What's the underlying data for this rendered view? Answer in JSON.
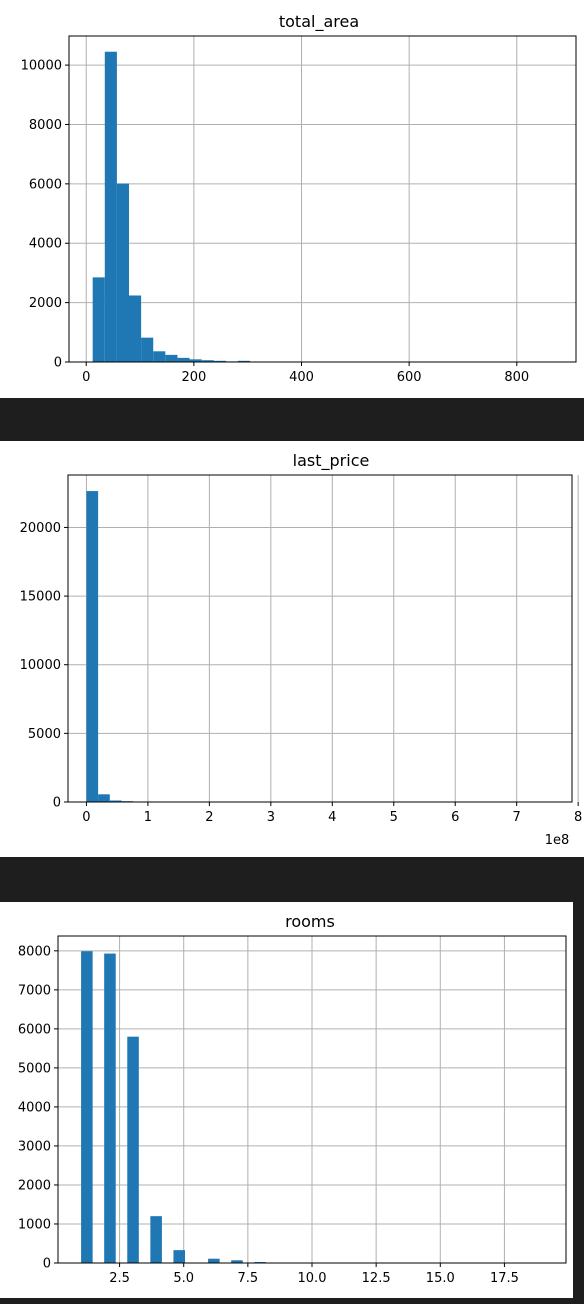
{
  "chart_data": [
    {
      "type": "bar",
      "title": "total_area",
      "xlim": [
        -32,
        910
      ],
      "ylim": [
        0,
        10980
      ],
      "grid": true,
      "bin_width": 22.5,
      "bins": [
        {
          "x0": 12.0,
          "value": 2850
        },
        {
          "x0": 34.5,
          "value": 10450
        },
        {
          "x0": 57.0,
          "value": 6010
        },
        {
          "x0": 79.5,
          "value": 2240
        },
        {
          "x0": 102.0,
          "value": 820
        },
        {
          "x0": 124.5,
          "value": 360
        },
        {
          "x0": 147.0,
          "value": 240
        },
        {
          "x0": 169.5,
          "value": 140
        },
        {
          "x0": 192.0,
          "value": 90
        },
        {
          "x0": 214.5,
          "value": 60
        },
        {
          "x0": 237.0,
          "value": 40
        },
        {
          "x0": 259.5,
          "value": 20
        },
        {
          "x0": 282.0,
          "value": 40
        },
        {
          "x0": 304.5,
          "value": 10
        },
        {
          "x0": 327.0,
          "value": 8
        },
        {
          "x0": 349.5,
          "value": 5
        },
        {
          "x0": 372.0,
          "value": 4
        }
      ],
      "xticks": [
        {
          "value": 0,
          "label": "0"
        },
        {
          "value": 200,
          "label": "200"
        },
        {
          "value": 400,
          "label": "400"
        },
        {
          "value": 600,
          "label": "600"
        },
        {
          "value": 800,
          "label": "800"
        }
      ],
      "yticks": [
        {
          "value": 0,
          "label": "0"
        },
        {
          "value": 2000,
          "label": "2000"
        },
        {
          "value": 4000,
          "label": "4000"
        },
        {
          "value": 6000,
          "label": "6000"
        },
        {
          "value": 8000,
          "label": "8000"
        },
        {
          "value": 10000,
          "label": "10000"
        }
      ],
      "offset_label": ""
    },
    {
      "type": "bar",
      "title": "last_price",
      "xlim": [
        -0.3,
        7.9
      ],
      "ylim": [
        0,
        23820
      ],
      "grid": true,
      "bin_width": 0.19,
      "bins": [
        {
          "x0": 0.0,
          "value": 22650
        },
        {
          "x0": 0.19,
          "value": 560
        },
        {
          "x0": 0.38,
          "value": 110
        },
        {
          "x0": 0.57,
          "value": 60
        },
        {
          "x0": 0.76,
          "value": 15
        },
        {
          "x0": 0.95,
          "value": 8
        }
      ],
      "xticks": [
        {
          "value": 0,
          "label": "0"
        },
        {
          "value": 1,
          "label": "1"
        },
        {
          "value": 2,
          "label": "2"
        },
        {
          "value": 3,
          "label": "3"
        },
        {
          "value": 4,
          "label": "4"
        },
        {
          "value": 5,
          "label": "5"
        },
        {
          "value": 6,
          "label": "6"
        },
        {
          "value": 7,
          "label": "7"
        },
        {
          "value": 8,
          "label": "8"
        }
      ],
      "yticks": [
        {
          "value": 0,
          "label": "0"
        },
        {
          "value": 5000,
          "label": "5000"
        },
        {
          "value": 10000,
          "label": "10000"
        },
        {
          "value": 15000,
          "label": "15000"
        },
        {
          "value": 20000,
          "label": "20000"
        }
      ],
      "offset_label": "1e8"
    },
    {
      "type": "bar",
      "title": "rooms",
      "xlim": [
        0.1,
        19.9
      ],
      "ylim": [
        0,
        8380
      ],
      "grid": true,
      "bin_width": 0.45,
      "bins": [
        {
          "x0": 1.0,
          "value": 7990
        },
        {
          "x0": 1.9,
          "value": 7930
        },
        {
          "x0": 2.8,
          "value": 5800
        },
        {
          "x0": 3.7,
          "value": 1200
        },
        {
          "x0": 4.6,
          "value": 330
        },
        {
          "x0": 5.95,
          "value": 110
        },
        {
          "x0": 6.85,
          "value": 70
        },
        {
          "x0": 7.75,
          "value": 25
        },
        {
          "x0": 8.65,
          "value": 8
        },
        {
          "x0": 9.55,
          "value": 8
        },
        {
          "x0": 10.45,
          "value": 3
        },
        {
          "x0": 11.35,
          "value": 2
        },
        {
          "x0": 12.7,
          "value": 1
        },
        {
          "x0": 13.6,
          "value": 1
        },
        {
          "x0": 15.85,
          "value": 1
        },
        {
          "x0": 18.55,
          "value": 1
        }
      ],
      "xticks": [
        {
          "value": 2.5,
          "label": "2.5"
        },
        {
          "value": 5.0,
          "label": "5.0"
        },
        {
          "value": 7.5,
          "label": "7.5"
        },
        {
          "value": 10.0,
          "label": "10.0"
        },
        {
          "value": 12.5,
          "label": "12.5"
        },
        {
          "value": 15.0,
          "label": "15.0"
        },
        {
          "value": 17.5,
          "label": "17.5"
        }
      ],
      "yticks": [
        {
          "value": 0,
          "label": "0"
        },
        {
          "value": 1000,
          "label": "1000"
        },
        {
          "value": 2000,
          "label": "2000"
        },
        {
          "value": 3000,
          "label": "3000"
        },
        {
          "value": 4000,
          "label": "4000"
        },
        {
          "value": 5000,
          "label": "5000"
        },
        {
          "value": 6000,
          "label": "6000"
        },
        {
          "value": 7000,
          "label": "7000"
        },
        {
          "value": 8000,
          "label": "8000"
        }
      ],
      "offset_label": ""
    }
  ]
}
